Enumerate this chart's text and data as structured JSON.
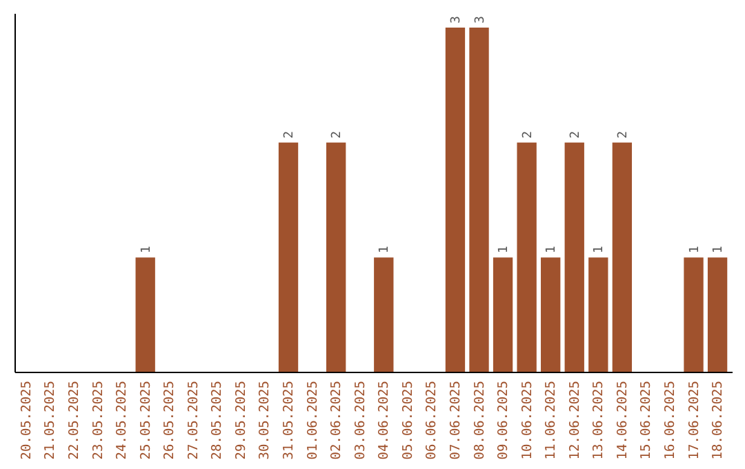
{
  "chart_data": {
    "type": "bar",
    "categories": [
      "20.05.2025",
      "21.05.2025",
      "22.05.2025",
      "23.05.2025",
      "24.05.2025",
      "25.05.2025",
      "26.05.2025",
      "27.05.2025",
      "28.05.2025",
      "29.05.2025",
      "30.05.2025",
      "31.05.2025",
      "01.06.2025",
      "02.06.2025",
      "03.06.2025",
      "04.06.2025",
      "05.06.2025",
      "06.06.2025",
      "07.06.2025",
      "08.06.2025",
      "09.06.2025",
      "10.06.2025",
      "11.06.2025",
      "12.06.2025",
      "13.06.2025",
      "14.06.2025",
      "15.06.2025",
      "16.06.2025",
      "17.06.2025",
      "18.06.2025"
    ],
    "values": [
      0,
      0,
      0,
      0,
      0,
      1,
      0,
      0,
      0,
      0,
      0,
      2,
      0,
      2,
      0,
      1,
      0,
      0,
      3,
      3,
      1,
      2,
      1,
      2,
      1,
      2,
      0,
      0,
      1,
      1
    ],
    "value_labels": [
      null,
      null,
      null,
      null,
      null,
      "1",
      null,
      null,
      null,
      null,
      null,
      "2",
      null,
      "2",
      null,
      "1",
      null,
      null,
      "3",
      "3",
      "1",
      "2",
      "1",
      "2",
      "1",
      "2",
      null,
      null,
      "1",
      "1"
    ],
    "color": "#a0522d",
    "tick_labels": "x"
  }
}
